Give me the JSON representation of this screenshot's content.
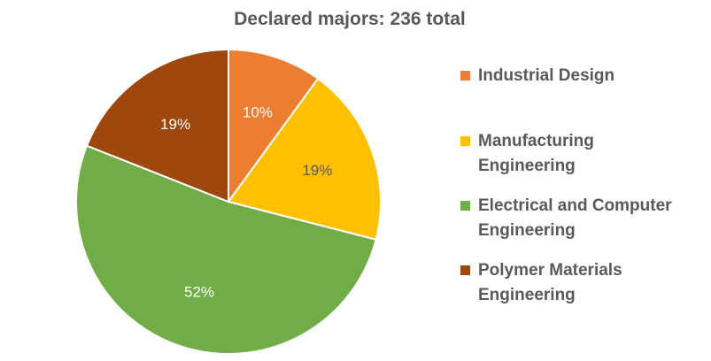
{
  "chart_data": {
    "type": "pie",
    "title": "Declared majors: 236 total",
    "slices": [
      {
        "name": "Industrial Design",
        "value": 10,
        "label": "10%",
        "color": "#ED7D31",
        "label_color": "#ffffff"
      },
      {
        "name": "Manufacturing\nEngineering",
        "value": 19,
        "label": "19%",
        "color": "#FFC000",
        "label_color": "#595959"
      },
      {
        "name": "Electrical and Computer\nEngineering",
        "value": 52,
        "label": "52%",
        "color": "#70AD47",
        "label_color": "#ffffff"
      },
      {
        "name": "Polymer Materials\nEngineering",
        "value": 19,
        "label": "19%",
        "color": "#9E480E",
        "label_color": "#ffffff"
      }
    ],
    "legend_position": "right"
  }
}
